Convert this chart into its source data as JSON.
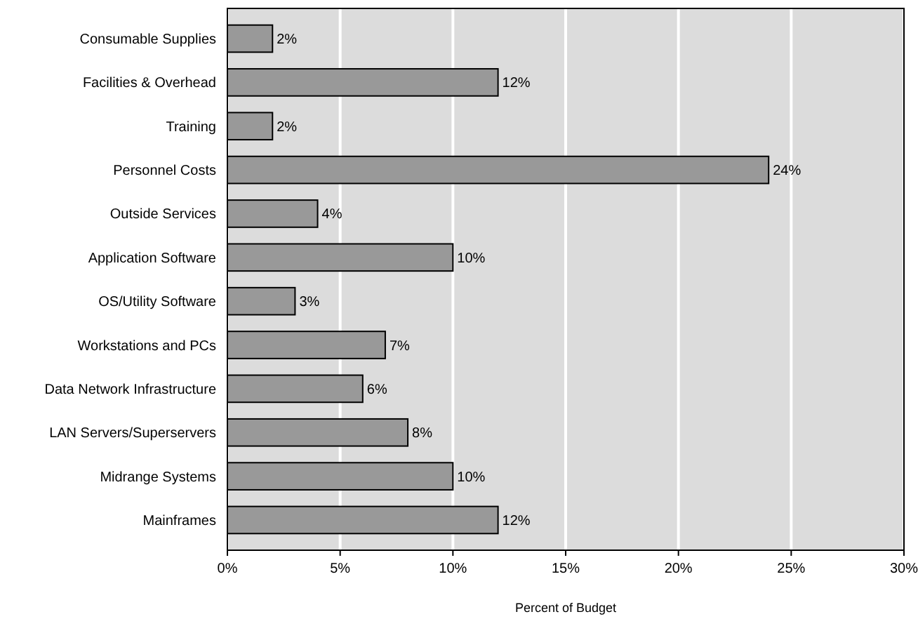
{
  "chart_data": {
    "type": "bar",
    "orientation": "horizontal",
    "xlabel": "Percent of Budget",
    "categories": [
      "Consumable Supplies",
      "Facilities & Overhead",
      "Training",
      "Personnel Costs",
      "Outside Services",
      "Application Software",
      "OS/Utility Software",
      "Workstations and PCs",
      "Data Network Infrastructure",
      "LAN Servers/Superservers",
      "Midrange Systems",
      "Mainframes"
    ],
    "values": [
      2,
      12,
      2,
      24,
      4,
      10,
      3,
      7,
      6,
      8,
      10,
      12
    ],
    "color": "#999999",
    "value_labels": [
      "2%",
      "12%",
      "2%",
      "24%",
      "4%",
      "10%",
      "3%",
      "7%",
      "6%",
      "8%",
      "10%",
      "12%"
    ],
    "xlim": [
      0,
      30
    ],
    "xticks": [
      {
        "value": 0,
        "label": "0%"
      },
      {
        "value": 5,
        "label": "5%"
      },
      {
        "value": 10,
        "label": "10%"
      },
      {
        "value": 15,
        "label": "15%"
      },
      {
        "value": 20,
        "label": "20%"
      },
      {
        "value": 25,
        "label": "25%"
      },
      {
        "value": 30,
        "label": "30%"
      }
    ],
    "grid": "x"
  }
}
